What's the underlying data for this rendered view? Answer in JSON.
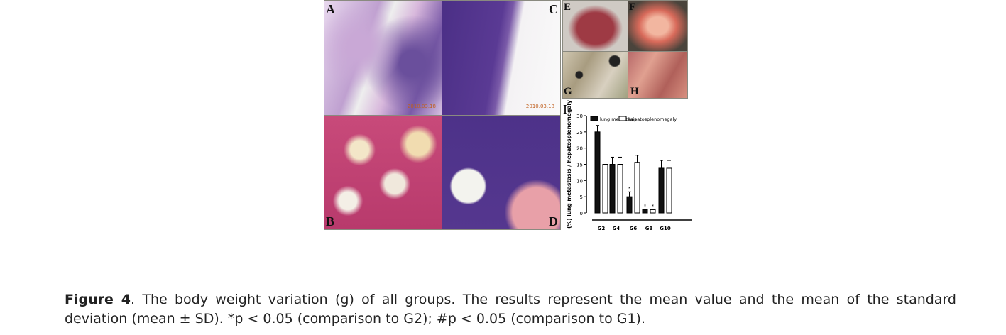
{
  "figure": {
    "panels": [
      {
        "id": "A",
        "label": "A",
        "timestamp": "2010.03.18"
      },
      {
        "id": "B",
        "label": "B"
      },
      {
        "id": "C",
        "label": "C",
        "timestamp": "2010.03.18"
      },
      {
        "id": "D",
        "label": "D"
      },
      {
        "id": "E",
        "label": "E"
      },
      {
        "id": "F",
        "label": "F"
      },
      {
        "id": "G",
        "label": "G"
      },
      {
        "id": "H",
        "label": "H"
      }
    ]
  },
  "chart_data": {
    "type": "bar",
    "panel_label": "I",
    "ylabel": "(%) lung metastasis / hepatosplenomegaly",
    "categories": [
      "G2",
      "G4",
      "G6",
      "G8",
      "G10"
    ],
    "ylim": [
      0,
      30
    ],
    "yticks": [
      0,
      5,
      10,
      15,
      20,
      25,
      30
    ],
    "legend_position": "top",
    "series": [
      {
        "name": "lung metastasis",
        "color": "#111111",
        "values": [
          25,
          15,
          5,
          1,
          13.8
        ],
        "errors": [
          2,
          2.2,
          1.5,
          0,
          2.4
        ],
        "markers": [
          "",
          "",
          "*",
          "*",
          ""
        ]
      },
      {
        "name": "hepatosplenomegaly",
        "color": "#ffffff",
        "values": [
          15,
          15,
          15.6,
          1,
          13.8
        ],
        "errors": [
          0,
          2.2,
          2.2,
          0,
          2.4
        ],
        "markers": [
          "",
          "",
          "",
          "*",
          ""
        ]
      }
    ]
  },
  "caption": {
    "label": "Figure 4",
    "text": ". The body weight variation (g) of all groups. The results represent the mean value and the mean of the standard deviation (mean ± SD). *p < 0.05 (comparison to G2); #p < 0.05 (comparison to G1)."
  }
}
